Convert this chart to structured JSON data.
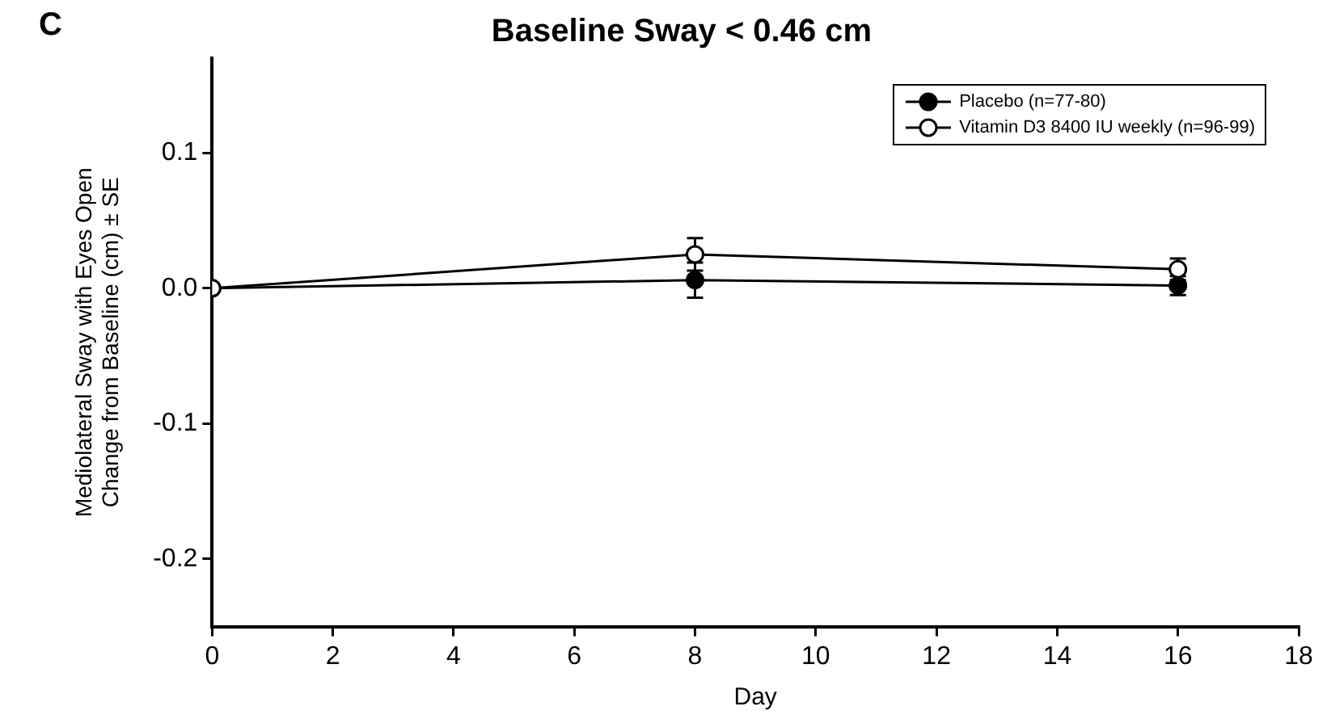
{
  "chart_data": {
    "type": "line",
    "title": "Baseline Sway < 0.46 cm",
    "xlabel": "Day",
    "ylabel": [
      "Mediolateral Sway with Eyes Open",
      "Change from Baseline (cm) ± SE"
    ],
    "annotations": [
      "C"
    ],
    "x": [
      0,
      8,
      16
    ],
    "xlim": [
      0,
      18
    ],
    "xticks": [
      0,
      2,
      4,
      6,
      8,
      10,
      12,
      14,
      16,
      18
    ],
    "ylim": [
      -0.25,
      0.17
    ],
    "yticks": [
      {
        "value": 0.1,
        "label": "0.1"
      },
      {
        "value": 0,
        "label": "0.0"
      },
      {
        "value": -0.1,
        "label": "-0.1"
      },
      {
        "value": -0.2,
        "label": "-0.2"
      }
    ],
    "grid": false,
    "legend": "top right",
    "marker": "circle",
    "line_style": "solid",
    "series": [
      {
        "name": "Placebo (n=77-80)",
        "color": "#000000",
        "values": [
          0,
          0.006,
          0.002
        ],
        "errors": [
          null,
          0.013,
          0.007
        ]
      },
      {
        "name": "Vitamin D3 8400 IU weekly (n=96-99)",
        "color": "#000000",
        "colors": [
          "#ffffff",
          "#ffffff",
          "#ffffff"
        ],
        "values": [
          0,
          0.025,
          0.014
        ],
        "errors": [
          null,
          0.012,
          0.008
        ]
      }
    ]
  }
}
